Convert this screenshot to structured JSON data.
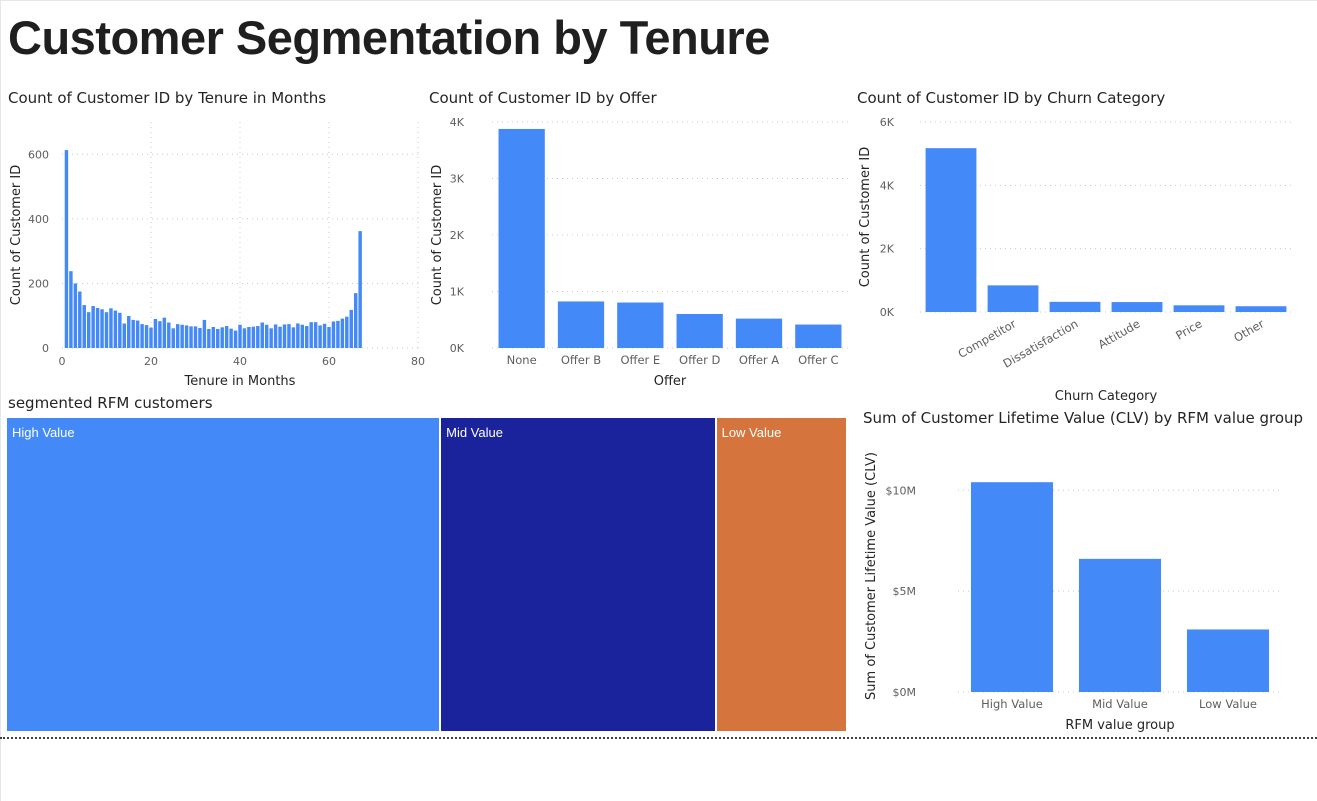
{
  "page": {
    "title": "Customer Segmentation by Tenure"
  },
  "chart_data": [
    {
      "id": "tenure",
      "type": "bar",
      "title": "Count of Customer ID by Tenure in Months",
      "xlabel": "Tenure in Months",
      "ylabel": "Count of Customer ID",
      "xlim": [
        0,
        80
      ],
      "ylim": [
        0,
        700
      ],
      "xticks": [
        0,
        20,
        40,
        60,
        80
      ],
      "xtick_labels": [
        "0",
        "20",
        "40",
        "60",
        "80"
      ],
      "yticks": [
        0,
        200,
        400,
        600
      ],
      "ytick_labels": [
        "0",
        "200",
        "400",
        "600"
      ],
      "grid": true,
      "color": "#4389F8",
      "x": [
        1,
        2,
        3,
        4,
        5,
        6,
        7,
        8,
        9,
        10,
        11,
        12,
        13,
        14,
        15,
        16,
        17,
        18,
        19,
        20,
        21,
        22,
        23,
        24,
        25,
        26,
        27,
        28,
        29,
        30,
        31,
        32,
        33,
        34,
        35,
        36,
        37,
        38,
        39,
        40,
        41,
        42,
        43,
        44,
        45,
        46,
        47,
        48,
        49,
        50,
        51,
        52,
        53,
        54,
        55,
        56,
        57,
        58,
        59,
        60,
        61,
        62,
        63,
        64,
        65,
        66,
        67,
        68,
        69,
        70,
        71,
        72
      ],
      "values": [
        613,
        238,
        200,
        175,
        133,
        111,
        130,
        124,
        120,
        111,
        123,
        116,
        109,
        76,
        99,
        87,
        85,
        74,
        71,
        63,
        90,
        83,
        94,
        79,
        61,
        74,
        72,
        70,
        67,
        67,
        62,
        87,
        59,
        65,
        59,
        64,
        68,
        60,
        54,
        72,
        61,
        65,
        66,
        68,
        79,
        72,
        61,
        73,
        66,
        73,
        74,
        64,
        76,
        72,
        68,
        80,
        80,
        70,
        75,
        65,
        82,
        84,
        91,
        97,
        118,
        170,
        362,
        0,
        0,
        0,
        0,
        0
      ],
      "series_note": ""
    },
    {
      "id": "offer",
      "type": "bar",
      "title": "Count of Customer ID by Offer",
      "xlabel": "Offer",
      "ylabel": "Count of Customer ID",
      "categories": [
        "None",
        "Offer B",
        "Offer E",
        "Offer D",
        "Offer A",
        "Offer C"
      ],
      "values": [
        3877,
        824,
        805,
        602,
        520,
        415
      ],
      "ylim": [
        0,
        4000
      ],
      "yticks": [
        0,
        1000,
        2000,
        3000,
        4000
      ],
      "ytick_labels": [
        "0K",
        "1K",
        "2K",
        "3K",
        "4K"
      ],
      "grid": true,
      "color": "#4389F8"
    },
    {
      "id": "churn",
      "type": "bar",
      "title": "Count of Customer ID by Churn Category",
      "xlabel": "Churn Category",
      "ylabel": "Count of Customer ID",
      "categories": [
        "",
        "Competitor",
        "Dissatisfaction",
        "Attitude",
        "Price",
        "Other"
      ],
      "values": [
        5174,
        841,
        321,
        314,
        211,
        182
      ],
      "ylim": [
        0,
        6000
      ],
      "yticks": [
        0,
        2000,
        4000,
        6000
      ],
      "ytick_labels": [
        "0K",
        "2K",
        "4K",
        "6K"
      ],
      "grid": true,
      "color": "#4389F8"
    },
    {
      "id": "rfm_treemap",
      "type": "treemap",
      "title": "segmented RFM customers",
      "categories": [
        "High Value",
        "Mid Value",
        "Low Value"
      ],
      "values": [
        10.4,
        6.6,
        3.1
      ],
      "colors": [
        "#4389F8",
        "#1A239B",
        "#D6743D"
      ]
    },
    {
      "id": "clv",
      "type": "bar",
      "title": "Sum of Customer Lifetime Value (CLV) by RFM value group",
      "xlabel": "RFM value group",
      "ylabel": "Sum of Customer Lifetime Value (CLV)",
      "categories": [
        "High Value",
        "Mid Value",
        "Low Value"
      ],
      "values": [
        10400000,
        6600000,
        3100000
      ],
      "ylim": [
        0,
        11500000
      ],
      "yticks": [
        0,
        5000000,
        10000000
      ],
      "ytick_labels": [
        "$0M",
        "$5M",
        "$10M"
      ],
      "grid": true,
      "color": "#4389F8"
    }
  ]
}
